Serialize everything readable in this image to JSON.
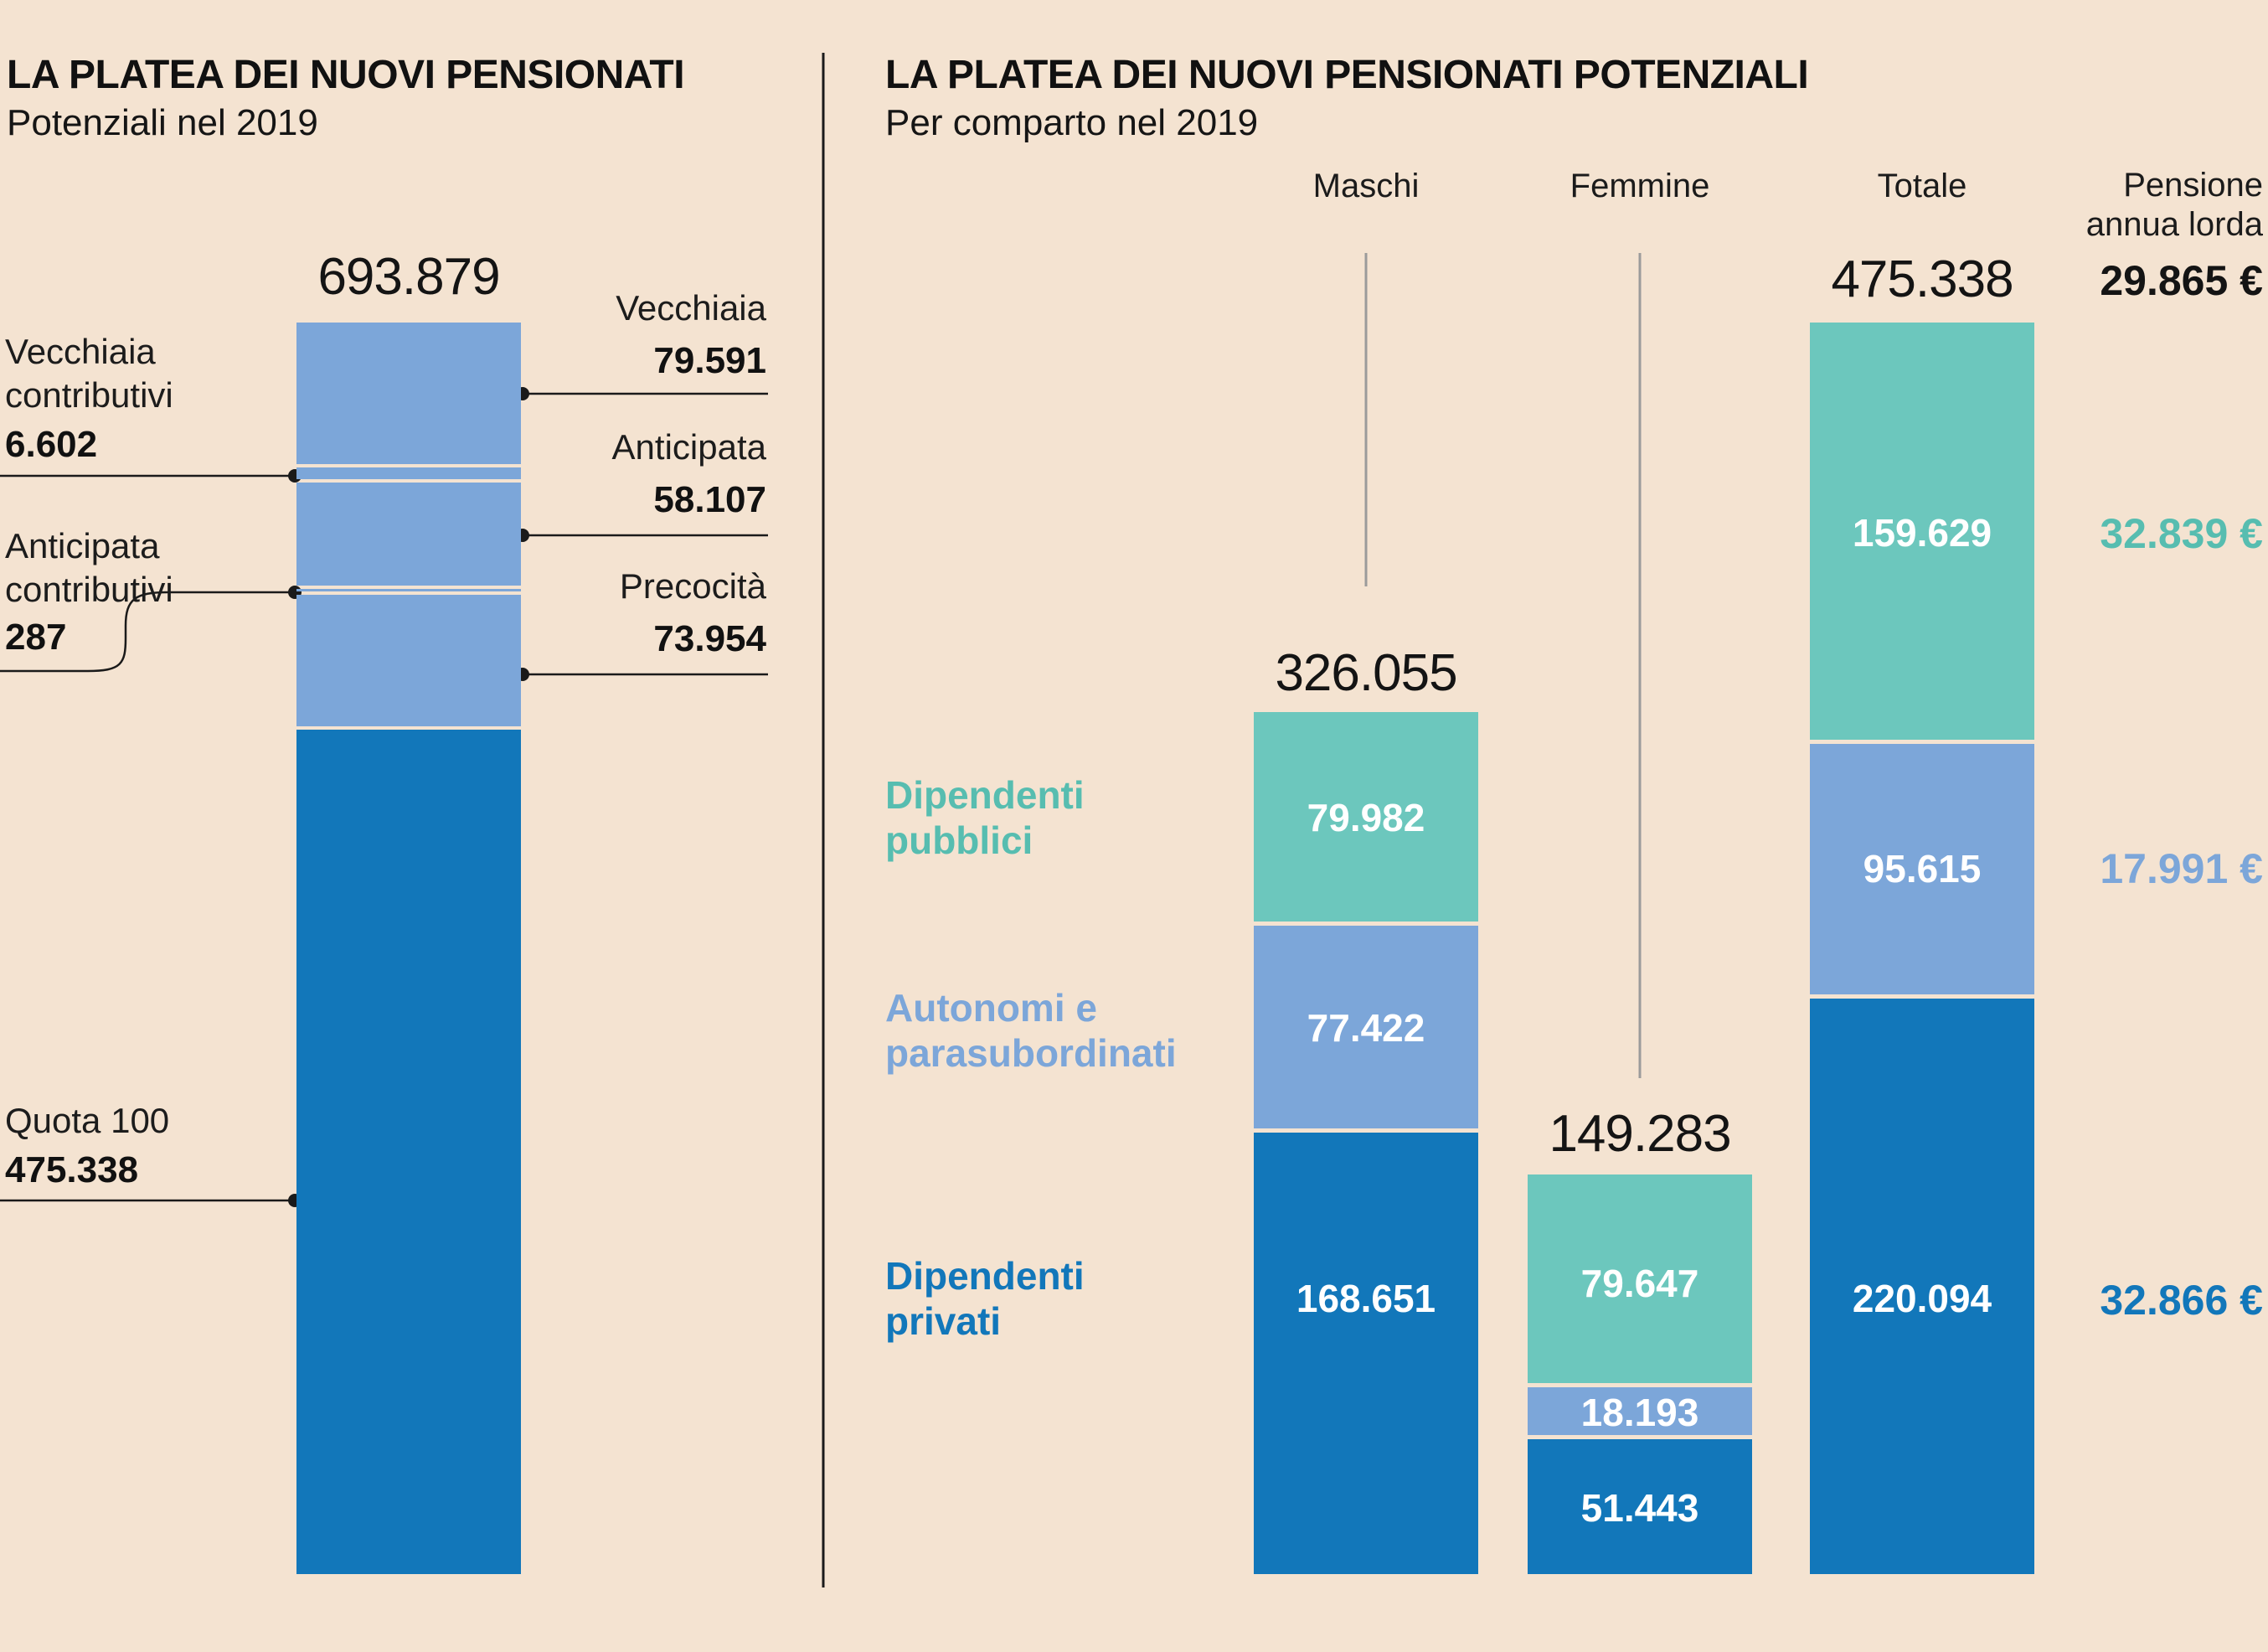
{
  "palette": {
    "background": "#f4e3d1",
    "teal": "#6cc7bd",
    "teal_text": "#57bdb0",
    "light_blue": "#7ca6d9",
    "dark_blue": "#1277ba",
    "line_black": "#1a1a1a",
    "line_gray": "#9b9b9b"
  },
  "ui": {
    "left": {
      "title": "LA PLATEA DEI NUOVI PENSIONATI",
      "subtitle": "Potenziali nel 2019",
      "total": "693.879",
      "callouts_right": [
        {
          "label": "Vecchiaia",
          "value": "79.591"
        },
        {
          "label": "Anticipata",
          "value": "58.107"
        },
        {
          "label": "Precocità",
          "value": "73.954"
        }
      ],
      "callouts_left": [
        {
          "label_line1": "Vecchiaia",
          "label_line2": "contributivi",
          "value": "6.602"
        },
        {
          "label_line1": "Anticipata",
          "label_line2": "contributivi",
          "value": "287"
        },
        {
          "label_line1": "Quota 100",
          "label_line2": "",
          "value": "475.338"
        }
      ]
    },
    "right": {
      "title": "LA PLATEA DEI NUOVI PENSIONATI POTENZIALI",
      "subtitle": "Per comparto nel 2019",
      "col_headers": [
        "Maschi",
        "Femmine",
        "Totale"
      ],
      "pensione_header_line1": "Pensione",
      "pensione_header_line2": "annua lorda",
      "totals": [
        "326.055",
        "149.283",
        "475.338"
      ],
      "categories": [
        {
          "line1": "Dipendenti",
          "line2": "pubblici"
        },
        {
          "line1": "Autonomi e",
          "line2": "parasubordinati"
        },
        {
          "line1": "Dipendenti",
          "line2": "privati"
        }
      ],
      "values": {
        "maschi": [
          "79.982",
          "77.422",
          "168.651"
        ],
        "femmine": [
          "79.647",
          "18.193",
          "51.443"
        ],
        "totale": [
          "159.629",
          "95.615",
          "220.094"
        ]
      },
      "euro": {
        "total": "29.865 €",
        "pubblici": "32.839 €",
        "autonomi": "17.991 €",
        "privati": "32.866 €"
      }
    }
  },
  "chart_data": [
    {
      "type": "bar",
      "stacked": true,
      "title": "LA PLATEA DEI NUOVI PENSIONATI",
      "subtitle": "Potenziali nel 2019",
      "categories": [
        "Potenziali nel 2019"
      ],
      "total": 693879,
      "segments": [
        {
          "label": "Vecchiaia",
          "value": 79591,
          "color": "light_blue"
        },
        {
          "label": "Vecchiaia contributivi",
          "value": 6602,
          "color": "light_blue"
        },
        {
          "label": "Anticipata",
          "value": 58107,
          "color": "light_blue"
        },
        {
          "label": "Anticipata contributivi",
          "value": 287,
          "color": "light_blue"
        },
        {
          "label": "Precocità",
          "value": 73954,
          "color": "light_blue"
        },
        {
          "label": "Quota 100",
          "value": 475338,
          "color": "dark_blue"
        }
      ],
      "legend_position": "callouts",
      "grid": false
    },
    {
      "type": "bar",
      "stacked": true,
      "title": "LA PLATEA DEI NUOVI PENSIONATI POTENZIALI",
      "subtitle": "Per comparto nel 2019",
      "categories": [
        "Maschi",
        "Femmine",
        "Totale"
      ],
      "series": [
        {
          "name": "Dipendenti pubblici",
          "values": [
            79982,
            79647,
            159629
          ],
          "color": "teal",
          "pensione_annua_lorda_eur": 32839
        },
        {
          "name": "Autonomi e parasubordinati",
          "values": [
            77422,
            18193,
            95615
          ],
          "color": "light_blue",
          "pensione_annua_lorda_eur": 17991
        },
        {
          "name": "Dipendenti privati",
          "values": [
            168651,
            51443,
            220094
          ],
          "color": "dark_blue",
          "pensione_annua_lorda_eur": 32866
        }
      ],
      "totals": [
        326055,
        149283,
        475338
      ],
      "pensione_annua_lorda_total_eur": 29865,
      "grid": false
    }
  ]
}
